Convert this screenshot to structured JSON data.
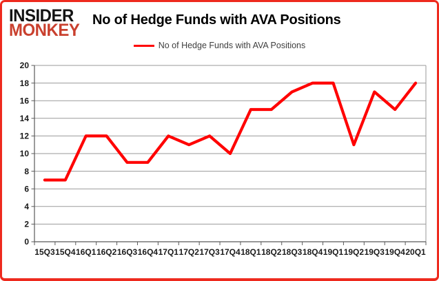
{
  "logo": {
    "line1": "INSIDER",
    "line2": "MONKEY"
  },
  "title": "No of Hedge Funds with AVA Positions",
  "legend": {
    "label": "No of Hedge Funds with AVA Positions",
    "swatch_color": "#ff0000"
  },
  "colors": {
    "series_red": "#ff0000",
    "logo_black": "#131313",
    "logo_red": "#c9402e",
    "card_border_red": "#ee2a1e",
    "gridline_gray": "#9a9a9a",
    "axis_gray": "#595959",
    "label_color": "#1a1a1a"
  },
  "chart_data": {
    "type": "line",
    "title": "No of Hedge Funds with AVA Positions",
    "categories": [
      "15Q3",
      "15Q4",
      "16Q1",
      "16Q2",
      "16Q3",
      "16Q4",
      "17Q1",
      "17Q2",
      "17Q3",
      "17Q4",
      "18Q1",
      "18Q2",
      "18Q3",
      "18Q4",
      "19Q1",
      "19Q2",
      "19Q3",
      "19Q4",
      "20Q1"
    ],
    "series": [
      {
        "name": "No of Hedge Funds with AVA Positions",
        "color": "#ff0000",
        "values": [
          7,
          7,
          12,
          12,
          9,
          9,
          12,
          11,
          12,
          10,
          15,
          15,
          17,
          18,
          18,
          11,
          17,
          15,
          18
        ]
      }
    ],
    "xlabel": "",
    "ylabel": "",
    "ylim": [
      0,
      20
    ],
    "ytick_step": 2,
    "yticks": [
      0,
      2,
      4,
      6,
      8,
      10,
      12,
      14,
      16,
      18,
      20
    ],
    "grid": true,
    "legend_position": "top-center"
  }
}
